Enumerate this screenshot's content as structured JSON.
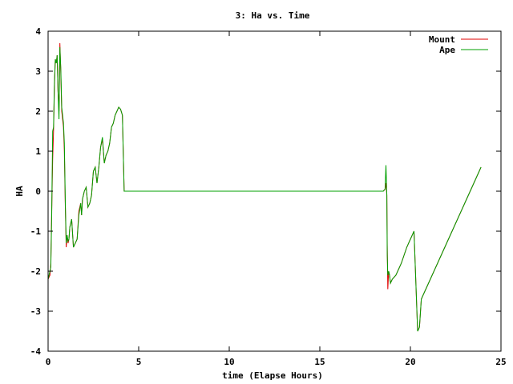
{
  "chart_data": {
    "type": "line",
    "title": "3: Ha vs. Time",
    "xlabel": "time (Elapse Hours)",
    "ylabel": "HA",
    "xlim": [
      0,
      25
    ],
    "ylim": [
      -4,
      4
    ],
    "xticks": [
      "0",
      "5",
      "10",
      "15",
      "20",
      "25"
    ],
    "yticks": [
      "-4",
      "-3",
      "-2",
      "-1",
      "0",
      "1",
      "2",
      "3",
      "4"
    ],
    "grid": false,
    "legend_position": "top-right",
    "series": [
      {
        "name": "Mount",
        "color": "#e00000",
        "x": [
          0,
          0.1,
          0.15,
          0.2,
          0.25,
          0.3,
          0.35,
          0.4,
          0.45,
          0.5,
          0.55,
          0.6,
          0.65,
          0.7,
          0.75,
          0.8,
          0.85,
          0.9,
          0.95,
          1.0,
          1.05,
          1.1,
          1.15,
          1.2,
          1.3,
          1.4,
          1.5,
          1.6,
          1.7,
          1.8,
          1.85,
          1.9,
          2.0,
          2.1,
          2.2,
          2.3,
          2.4,
          2.5,
          2.6,
          2.7,
          2.8,
          2.9,
          3.0,
          3.1,
          3.2,
          3.3,
          3.4,
          3.5,
          3.6,
          3.7,
          3.8,
          3.9,
          4.0,
          4.1,
          4.2,
          4.3,
          4.4,
          4.5,
          4.6,
          4.7,
          5.0,
          10.0,
          15.0,
          18.5,
          18.6,
          18.65,
          18.7,
          18.72,
          18.75,
          18.8,
          18.85,
          18.9,
          19.0,
          19.2,
          19.5,
          19.8,
          20.0,
          20.2,
          20.4,
          20.5,
          20.6,
          20.7,
          21.0,
          21.5,
          22.0,
          22.5,
          23.0,
          23.5,
          23.9
        ],
        "values": [
          -2.2,
          -2.1,
          -1.8,
          -0.5,
          0.8,
          1.5,
          2.6,
          3.3,
          3.2,
          3.4,
          2.5,
          2.0,
          3.7,
          3.0,
          2.0,
          1.8,
          1.6,
          1.0,
          -0.4,
          -1.4,
          -1.1,
          -1.3,
          -1.2,
          -0.9,
          -0.7,
          -1.4,
          -1.3,
          -1.2,
          -0.5,
          -0.3,
          -0.6,
          -0.2,
          0.0,
          0.1,
          -0.4,
          -0.3,
          -0.1,
          0.5,
          0.6,
          0.2,
          0.6,
          1.1,
          1.3,
          0.7,
          0.9,
          1.0,
          1.2,
          1.6,
          1.7,
          1.9,
          2.0,
          2.1,
          2.05,
          1.9,
          0.0,
          0.0,
          0.0,
          0.0,
          0.0,
          0.0,
          0.0,
          0.0,
          0.0,
          0.0,
          0.05,
          0.2,
          -0.1,
          -1.35,
          -2.45,
          -2.0,
          -2.1,
          -2.3,
          -2.2,
          -2.1,
          -1.8,
          -1.4,
          -1.2,
          -1.0,
          -3.5,
          -3.4,
          -2.7,
          -2.6,
          -2.3,
          -1.8,
          -1.3,
          -0.8,
          -0.3,
          0.2,
          0.6
        ]
      },
      {
        "name": "Ape",
        "color": "#00a000",
        "x": [
          0,
          0.1,
          0.15,
          0.2,
          0.25,
          0.3,
          0.35,
          0.4,
          0.45,
          0.5,
          0.55,
          0.6,
          0.65,
          0.7,
          0.75,
          0.8,
          0.85,
          0.9,
          0.95,
          1.0,
          1.05,
          1.1,
          1.15,
          1.2,
          1.3,
          1.4,
          1.5,
          1.6,
          1.7,
          1.8,
          1.85,
          1.9,
          2.0,
          2.1,
          2.2,
          2.3,
          2.4,
          2.5,
          2.6,
          2.7,
          2.8,
          2.9,
          3.0,
          3.1,
          3.2,
          3.3,
          3.4,
          3.5,
          3.6,
          3.7,
          3.8,
          3.9,
          4.0,
          4.1,
          4.2,
          4.3,
          4.4,
          4.5,
          4.6,
          4.7,
          5.0,
          10.0,
          15.0,
          18.5,
          18.6,
          18.65,
          18.7,
          18.72,
          18.75,
          18.8,
          18.85,
          18.9,
          19.0,
          19.2,
          19.5,
          19.8,
          20.0,
          20.2,
          20.4,
          20.5,
          20.6,
          20.7,
          21.0,
          21.5,
          22.0,
          22.5,
          23.0,
          23.5,
          23.9
        ],
        "values": [
          -2.2,
          -2.0,
          -1.9,
          -0.6,
          1.5,
          1.6,
          2.7,
          3.3,
          3.2,
          3.4,
          2.5,
          1.8,
          3.6,
          3.1,
          2.1,
          1.9,
          1.7,
          1.2,
          -0.3,
          -1.3,
          -1.1,
          -1.25,
          -1.2,
          -0.9,
          -0.7,
          -1.4,
          -1.3,
          -1.2,
          -0.6,
          -0.3,
          -0.6,
          -0.2,
          0.0,
          0.1,
          -0.4,
          -0.3,
          -0.1,
          0.5,
          0.6,
          0.2,
          0.6,
          1.1,
          1.35,
          0.7,
          0.9,
          1.0,
          1.2,
          1.6,
          1.7,
          1.9,
          2.0,
          2.1,
          2.05,
          1.9,
          0.0,
          0.0,
          0.0,
          0.0,
          0.0,
          0.0,
          0.0,
          0.0,
          0.0,
          0.0,
          0.05,
          0.65,
          -0.1,
          -1.6,
          -2.1,
          -2.0,
          -2.1,
          -2.3,
          -2.2,
          -2.1,
          -1.8,
          -1.4,
          -1.2,
          -1.0,
          -3.5,
          -3.4,
          -2.7,
          -2.6,
          -2.3,
          -1.8,
          -1.3,
          -0.8,
          -0.3,
          0.2,
          0.6
        ]
      }
    ]
  }
}
